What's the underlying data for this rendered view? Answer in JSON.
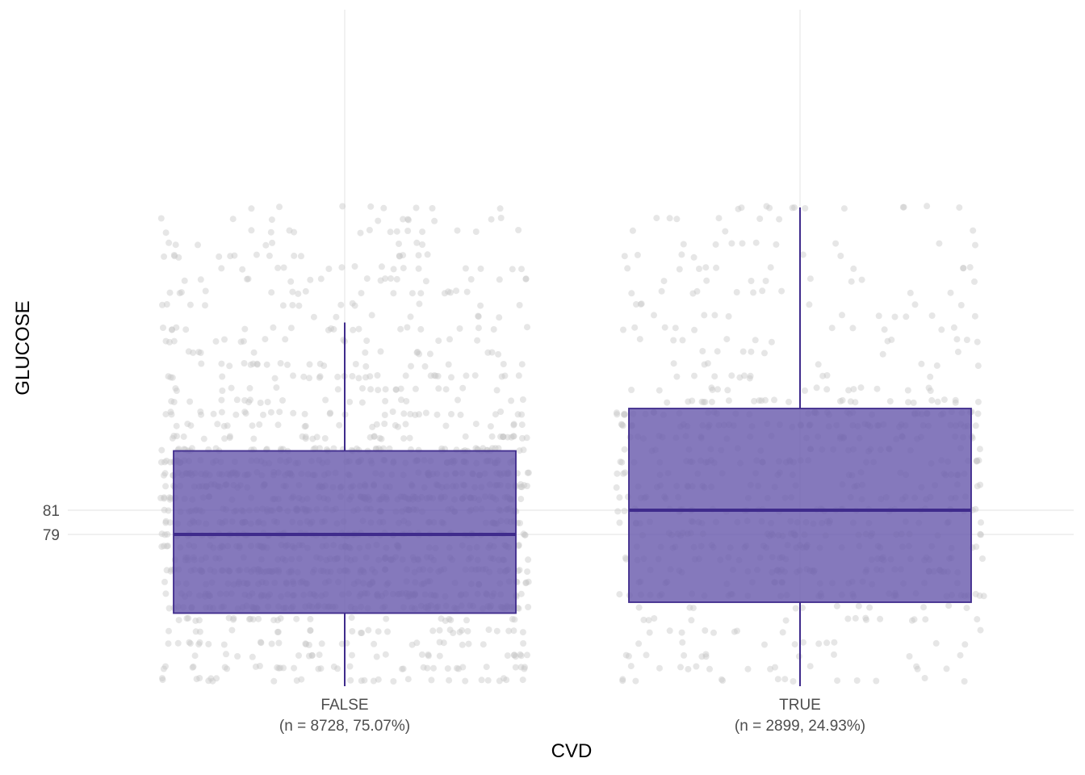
{
  "chart_data": {
    "type": "box",
    "title": "",
    "xlabel": "CVD",
    "ylabel": "GLUCOSE",
    "y_ticks": [
      79,
      81
    ],
    "y_tick_labels": [
      "79",
      "81"
    ],
    "ylim": [
      64.5,
      106.5
    ],
    "grid": "major gridlines at y ticks and category centers",
    "categories": [
      {
        "name": "FALSE",
        "label_line1": "FALSE",
        "label_line2": "(n = 8728, 75.07%)",
        "n": 8728,
        "percent": 75.07,
        "q1": 72.5,
        "median": 79,
        "q3": 85.9,
        "whisker_low": 64.5,
        "whisker_high": 96.5
      },
      {
        "name": "TRUE",
        "label_line1": "TRUE",
        "label_line2": "(n = 2899, 24.93%)",
        "n": 2899,
        "percent": 24.93,
        "q1": 73.4,
        "median": 81,
        "q3": 89.4,
        "whisker_low": 64.5,
        "whisker_high": 106
      }
    ],
    "colors": {
      "box_fill": "#6a5cad",
      "box_outline": "#3f2b8c",
      "median_line": "#3f2b8c",
      "whisker": "#3f2b8c",
      "points": "#c8c8c8",
      "gridline": "#ebebeb"
    },
    "jitter_points": "gray semi-transparent jittered observations behind each box"
  }
}
